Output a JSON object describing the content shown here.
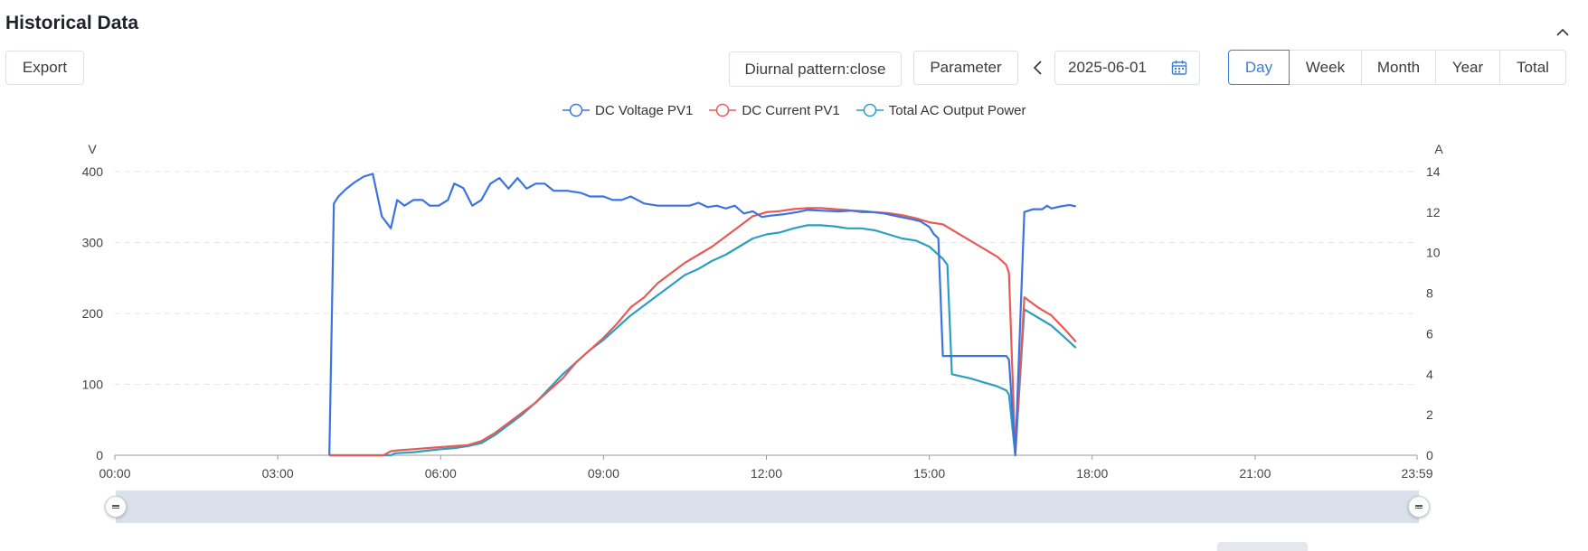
{
  "header": {
    "title": "Historical Data"
  },
  "toolbar": {
    "export_label": "Export",
    "diurnal_label": "Diurnal pattern:close",
    "parameter_label": "Parameter",
    "date_value": "2025-06-01",
    "periods": [
      "Day",
      "Week",
      "Month",
      "Year",
      "Total"
    ],
    "active_period": "Day"
  },
  "colors": {
    "accent": "#3b7ddd",
    "voltage": "#3b74e0",
    "current": "#e65b57",
    "power": "#2b9fc1"
  },
  "chart_data": {
    "type": "line",
    "y_left": {
      "unit": "V",
      "range": [
        0,
        400
      ],
      "ticks": [
        "0",
        "100",
        "200",
        "300",
        "400"
      ]
    },
    "y_right": {
      "unit": "A",
      "range": [
        0,
        14
      ],
      "ticks": [
        "0",
        "2",
        "4",
        "6",
        "8",
        "10",
        "12",
        "14"
      ]
    },
    "x_axis": {
      "ticks": [
        "00:00",
        "03:00",
        "06:00",
        "09:00",
        "12:00",
        "15:00",
        "18:00",
        "21:00",
        "23:59"
      ],
      "range_minutes": [
        0,
        1439
      ]
    },
    "grid": "horizontal dashed",
    "legend_placement": "top-center",
    "series": [
      {
        "name": "DC Voltage PV1",
        "axis": "left",
        "points": [
          [
            "03:57",
            0
          ],
          [
            "04:02",
            355
          ],
          [
            "04:07",
            365
          ],
          [
            "04:15",
            375
          ],
          [
            "04:25",
            385
          ],
          [
            "04:35",
            393
          ],
          [
            "04:45",
            397
          ],
          [
            "04:55",
            337
          ],
          [
            "05:05",
            320
          ],
          [
            "05:12",
            360
          ],
          [
            "05:20",
            352
          ],
          [
            "05:30",
            360
          ],
          [
            "05:40",
            360
          ],
          [
            "05:48",
            352
          ],
          [
            "05:58",
            352
          ],
          [
            "06:08",
            360
          ],
          [
            "06:15",
            383
          ],
          [
            "06:25",
            377
          ],
          [
            "06:35",
            352
          ],
          [
            "06:45",
            360
          ],
          [
            "06:55",
            383
          ],
          [
            "07:05",
            391
          ],
          [
            "07:15",
            376
          ],
          [
            "07:25",
            391
          ],
          [
            "07:35",
            376
          ],
          [
            "07:45",
            383
          ],
          [
            "07:55",
            383
          ],
          [
            "08:05",
            373
          ],
          [
            "08:20",
            373
          ],
          [
            "08:35",
            370
          ],
          [
            "08:45",
            365
          ],
          [
            "09:00",
            365
          ],
          [
            "09:10",
            360
          ],
          [
            "09:20",
            360
          ],
          [
            "09:30",
            365
          ],
          [
            "09:45",
            355
          ],
          [
            "10:00",
            352
          ],
          [
            "10:20",
            352
          ],
          [
            "10:35",
            352
          ],
          [
            "10:45",
            356
          ],
          [
            "10:55",
            350
          ],
          [
            "11:05",
            352
          ],
          [
            "11:15",
            348
          ],
          [
            "11:25",
            352
          ],
          [
            "11:35",
            341
          ],
          [
            "11:45",
            344
          ],
          [
            "11:55",
            336
          ],
          [
            "12:05",
            338
          ],
          [
            "12:20",
            340
          ],
          [
            "12:35",
            343
          ],
          [
            "12:45",
            346
          ],
          [
            "13:00",
            345
          ],
          [
            "13:20",
            344
          ],
          [
            "13:35",
            345
          ],
          [
            "13:50",
            344
          ],
          [
            "14:10",
            341
          ],
          [
            "14:25",
            337
          ],
          [
            "14:40",
            333
          ],
          [
            "14:50",
            330
          ],
          [
            "15:00",
            322
          ],
          [
            "15:05",
            312
          ],
          [
            "15:10",
            306
          ],
          [
            "15:15",
            140
          ],
          [
            "15:30",
            140
          ],
          [
            "15:45",
            140
          ],
          [
            "16:00",
            140
          ],
          [
            "16:15",
            140
          ],
          [
            "16:25",
            140
          ],
          [
            "16:28",
            135
          ],
          [
            "16:35",
            0
          ],
          [
            "16:45",
            343
          ],
          [
            "16:55",
            347
          ],
          [
            "17:05",
            347
          ],
          [
            "17:10",
            352
          ],
          [
            "17:15",
            348
          ],
          [
            "17:25",
            351
          ],
          [
            "17:35",
            353
          ],
          [
            "17:42",
            351
          ]
        ]
      },
      {
        "name": "DC Current PV1",
        "axis": "right",
        "points": [
          [
            "03:57",
            0
          ],
          [
            "04:30",
            0
          ],
          [
            "04:57",
            0
          ],
          [
            "05:05",
            0.2
          ],
          [
            "05:15",
            0.25
          ],
          [
            "05:30",
            0.3
          ],
          [
            "05:45",
            0.35
          ],
          [
            "06:00",
            0.4
          ],
          [
            "06:15",
            0.45
          ],
          [
            "06:30",
            0.5
          ],
          [
            "06:45",
            0.7
          ],
          [
            "07:00",
            1.1
          ],
          [
            "07:15",
            1.6
          ],
          [
            "07:30",
            2.1
          ],
          [
            "07:45",
            2.6
          ],
          [
            "08:00",
            3.2
          ],
          [
            "08:15",
            3.8
          ],
          [
            "08:30",
            4.6
          ],
          [
            "08:45",
            5.2
          ],
          [
            "09:00",
            5.8
          ],
          [
            "09:15",
            6.5
          ],
          [
            "09:30",
            7.3
          ],
          [
            "09:45",
            7.8
          ],
          [
            "10:00",
            8.5
          ],
          [
            "10:15",
            9.0
          ],
          [
            "10:30",
            9.5
          ],
          [
            "10:45",
            9.9
          ],
          [
            "11:00",
            10.3
          ],
          [
            "11:15",
            10.8
          ],
          [
            "11:30",
            11.3
          ],
          [
            "11:45",
            11.8
          ],
          [
            "12:00",
            12.0
          ],
          [
            "12:15",
            12.05
          ],
          [
            "12:30",
            12.15
          ],
          [
            "12:45",
            12.2
          ],
          [
            "13:00",
            12.2
          ],
          [
            "13:15",
            12.15
          ],
          [
            "13:30",
            12.1
          ],
          [
            "13:45",
            12.0
          ],
          [
            "14:00",
            12.0
          ],
          [
            "14:15",
            11.95
          ],
          [
            "14:30",
            11.85
          ],
          [
            "14:45",
            11.7
          ],
          [
            "15:00",
            11.5
          ],
          [
            "15:15",
            11.4
          ],
          [
            "15:30",
            11.0
          ],
          [
            "15:45",
            10.6
          ],
          [
            "16:00",
            10.2
          ],
          [
            "16:15",
            9.8
          ],
          [
            "16:25",
            9.4
          ],
          [
            "16:28",
            9.0
          ],
          [
            "16:35",
            0
          ],
          [
            "16:45",
            7.8
          ],
          [
            "17:00",
            7.3
          ],
          [
            "17:15",
            6.9
          ],
          [
            "17:30",
            6.2
          ],
          [
            "17:42",
            5.6
          ]
        ]
      },
      {
        "name": "Total AC Output Power",
        "axis": "right",
        "points": [
          [
            "03:57",
            0
          ],
          [
            "04:30",
            0
          ],
          [
            "05:05",
            0
          ],
          [
            "05:10",
            0.1
          ],
          [
            "05:30",
            0.15
          ],
          [
            "05:50",
            0.25
          ],
          [
            "06:00",
            0.3
          ],
          [
            "06:15",
            0.35
          ],
          [
            "06:30",
            0.45
          ],
          [
            "06:45",
            0.6
          ],
          [
            "07:00",
            1.0
          ],
          [
            "07:15",
            1.5
          ],
          [
            "07:30",
            2.0
          ],
          [
            "07:45",
            2.6
          ],
          [
            "08:00",
            3.3
          ],
          [
            "08:15",
            4.0
          ],
          [
            "08:30",
            4.6
          ],
          [
            "08:45",
            5.2
          ],
          [
            "09:00",
            5.7
          ],
          [
            "09:15",
            6.3
          ],
          [
            "09:30",
            6.9
          ],
          [
            "09:45",
            7.4
          ],
          [
            "10:00",
            7.9
          ],
          [
            "10:15",
            8.4
          ],
          [
            "10:30",
            8.9
          ],
          [
            "10:45",
            9.2
          ],
          [
            "11:00",
            9.6
          ],
          [
            "11:15",
            9.9
          ],
          [
            "11:30",
            10.3
          ],
          [
            "11:45",
            10.7
          ],
          [
            "12:00",
            10.9
          ],
          [
            "12:15",
            11.0
          ],
          [
            "12:30",
            11.2
          ],
          [
            "12:45",
            11.35
          ],
          [
            "13:00",
            11.35
          ],
          [
            "13:15",
            11.3
          ],
          [
            "13:30",
            11.2
          ],
          [
            "13:45",
            11.2
          ],
          [
            "14:00",
            11.1
          ],
          [
            "14:15",
            10.9
          ],
          [
            "14:30",
            10.7
          ],
          [
            "14:45",
            10.6
          ],
          [
            "15:00",
            10.3
          ],
          [
            "15:15",
            9.7
          ],
          [
            "15:20",
            9.4
          ],
          [
            "15:25",
            4.0
          ],
          [
            "15:45",
            3.8
          ],
          [
            "16:00",
            3.6
          ],
          [
            "16:15",
            3.4
          ],
          [
            "16:25",
            3.2
          ],
          [
            "16:28",
            3.0
          ],
          [
            "16:35",
            0
          ],
          [
            "16:45",
            7.2
          ],
          [
            "17:00",
            6.8
          ],
          [
            "17:15",
            6.4
          ],
          [
            "17:30",
            5.8
          ],
          [
            "17:42",
            5.3
          ]
        ]
      }
    ]
  }
}
